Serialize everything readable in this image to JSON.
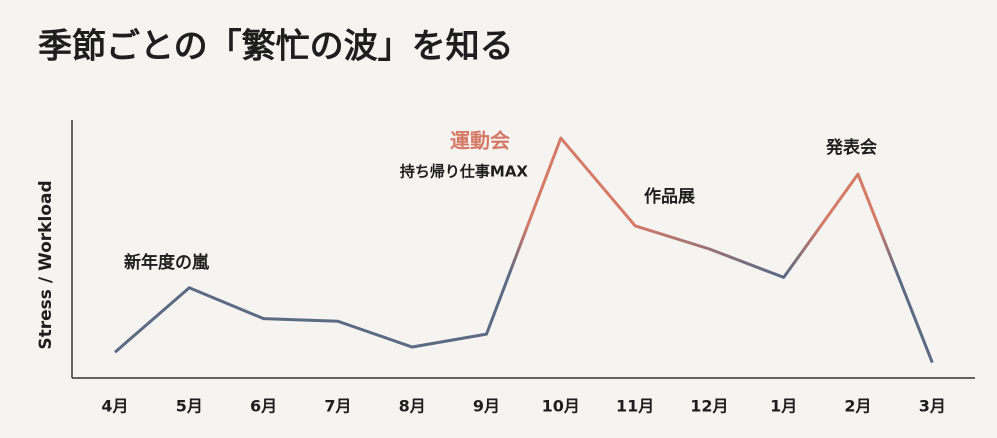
{
  "chart_data": {
    "type": "line",
    "title": "季節ごとの「繁忙の波」を知る",
    "y_label": "Stress / Workload",
    "categories": [
      "4月",
      "5月",
      "6月",
      "7月",
      "8月",
      "9月",
      "10月",
      "11月",
      "12月",
      "1月",
      "2月",
      "3月"
    ],
    "values": [
      10,
      35,
      23,
      22,
      12,
      17,
      93,
      59,
      50,
      39,
      79,
      6
    ],
    "ylim": [
      0,
      100
    ],
    "color_low": "#5c6a84",
    "color_high": "#d67a68",
    "grid": false,
    "annotations": [
      {
        "text": "新年度の嵐"
      },
      {
        "text": "運動会",
        "subtext": "持ち帰り仕事MAX"
      },
      {
        "text": "作品展"
      },
      {
        "text": "発表会"
      }
    ]
  }
}
